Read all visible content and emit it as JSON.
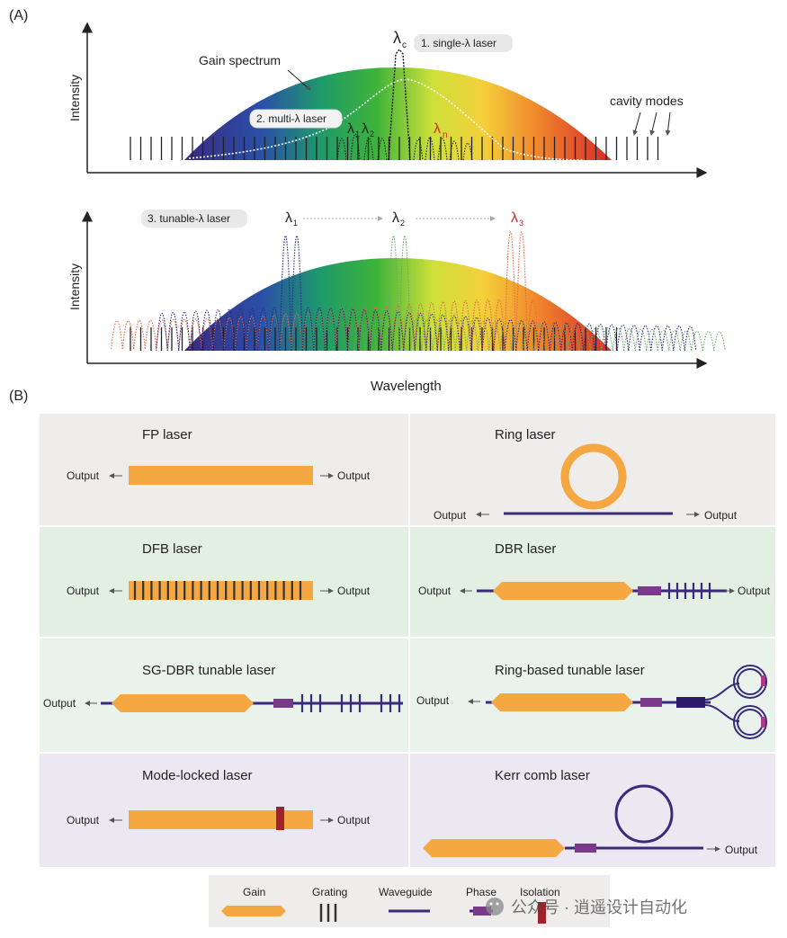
{
  "panel_a": {
    "label": "(A)",
    "top": {
      "ylabel": "Intensity",
      "gain_label": "Gain spectrum",
      "single_label": "1. single-λ laser",
      "multi_label": "2. multi-λ laser",
      "cavity_label": "cavity modes",
      "lambda_c": "λ",
      "lambda_c_sub": "c",
      "lambda_1": "λ",
      "lambda_1_sub": "1",
      "lambda_2": "λ",
      "lambda_2_sub": "2",
      "lambda_n": "λ",
      "lambda_n_sub": "n"
    },
    "bottom": {
      "ylabel": "Intensity",
      "tunable_label": "3. tunable-λ laser",
      "l1": "λ",
      "l1_sub": "1",
      "l2": "λ",
      "l2_sub": "2",
      "l3": "λ",
      "l3_sub": "3",
      "xlabel": "Wavelength"
    }
  },
  "panel_b": {
    "label": "(B)",
    "output": "Output",
    "cells": {
      "fp": "FP laser",
      "ring": "Ring laser",
      "dfb": "DFB laser",
      "dbr": "DBR laser",
      "sgdbr": "SG-DBR tunable laser",
      "ringtun": "Ring-based tunable laser",
      "modelocked": "Mode-locked laser",
      "kerr": "Kerr comb laser"
    },
    "legend": {
      "gain": "Gain",
      "grating": "Grating",
      "waveguide": "Waveguide",
      "phase": "Phase",
      "isolation": "Isolation"
    },
    "watermark": "公众号 · 逍遥设计自动化"
  },
  "colors": {
    "gain": "#f5a842",
    "waveguide": "#3a2a7a",
    "phase": "#7a3a8a",
    "isolation": "#a0222a",
    "bg_row1": "#efecec",
    "bg_row2": "#e3efe3",
    "bg_row3": "#e9f3ec",
    "bg_row4": "#ece8f1"
  }
}
